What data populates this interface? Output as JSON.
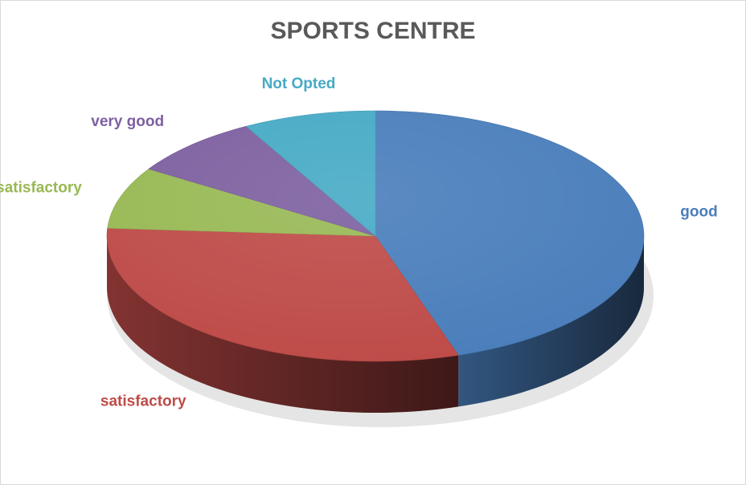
{
  "chart_data": {
    "type": "pie",
    "title": "SPORTS CENTRE",
    "style": "3d",
    "legend": "none",
    "slices": [
      {
        "label": "good",
        "value": 45,
        "color": "#4a7ebb"
      },
      {
        "label": "satisfactory",
        "value": 31,
        "color": "#be4b48"
      },
      {
        "label": "unsatisfactory",
        "value": 8,
        "color": "#98b954"
      },
      {
        "label": "very good",
        "value": 8,
        "color": "#7d60a0"
      },
      {
        "label": "Not Opted",
        "value": 8,
        "color": "#46aac5"
      }
    ]
  }
}
